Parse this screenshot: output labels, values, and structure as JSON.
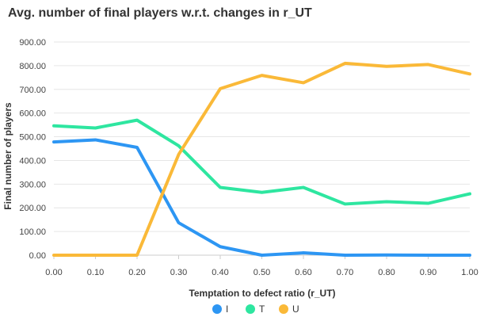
{
  "chart_data": {
    "type": "line",
    "title": "Avg. number of final players w.r.t. changes in r_UT",
    "xlabel": "Temptation to defect ratio (r_UT)",
    "ylabel": "Final number of players",
    "x": [
      0.0,
      0.1,
      0.2,
      0.3,
      0.4,
      0.5,
      0.6,
      0.7,
      0.8,
      0.9,
      1.0
    ],
    "x_tick_labels": [
      "0.00",
      "0.10",
      "0.20",
      "0.30",
      "0.40",
      "0.50",
      "0.60",
      "0.70",
      "0.80",
      "0.90",
      "1.00"
    ],
    "y_tick_values": [
      0,
      100,
      200,
      300,
      400,
      500,
      600,
      700,
      800,
      900
    ],
    "y_tick_labels": [
      "0.00",
      "100.00",
      "200.00",
      "300.00",
      "400.00",
      "500.00",
      "600.00",
      "700.00",
      "800.00",
      "900.00"
    ],
    "xlim": [
      0,
      1
    ],
    "ylim": [
      0,
      900
    ],
    "grid": "horizontal",
    "legend_position": "bottom",
    "series": [
      {
        "name": "I",
        "color": "#2d96f3",
        "values": [
          478,
          487,
          455,
          137,
          36,
          0,
          10,
          0,
          1,
          0,
          0
        ]
      },
      {
        "name": "T",
        "color": "#2ee6a0",
        "values": [
          546,
          537,
          570,
          462,
          286,
          265,
          286,
          216,
          226,
          219,
          259
        ]
      },
      {
        "name": "U",
        "color": "#fab938",
        "values": [
          0,
          0,
          0,
          425,
          703,
          759,
          728,
          810,
          797,
          805,
          765
        ]
      }
    ]
  }
}
